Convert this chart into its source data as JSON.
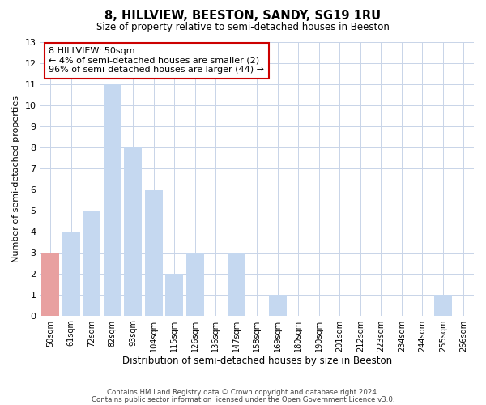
{
  "title": "8, HILLVIEW, BEESTON, SANDY, SG19 1RU",
  "subtitle": "Size of property relative to semi-detached houses in Beeston",
  "xlabel": "Distribution of semi-detached houses by size in Beeston",
  "ylabel": "Number of semi-detached properties",
  "categories": [
    "50sqm",
    "61sqm",
    "72sqm",
    "82sqm",
    "93sqm",
    "104sqm",
    "115sqm",
    "126sqm",
    "136sqm",
    "147sqm",
    "158sqm",
    "169sqm",
    "180sqm",
    "190sqm",
    "201sqm",
    "212sqm",
    "223sqm",
    "234sqm",
    "244sqm",
    "255sqm",
    "266sqm"
  ],
  "values": [
    3,
    4,
    5,
    11,
    8,
    6,
    2,
    3,
    0,
    3,
    0,
    1,
    0,
    0,
    0,
    0,
    0,
    0,
    0,
    1,
    0
  ],
  "highlight_index": 0,
  "bar_color": "#c5d8f0",
  "highlight_color": "#e8a0a0",
  "annotation_text": "8 HILLVIEW: 50sqm\n← 4% of semi-detached houses are smaller (2)\n96% of semi-detached houses are larger (44) →",
  "annotation_box_color": "#ffffff",
  "annotation_box_edge": "#cc0000",
  "ylim": [
    0,
    13
  ],
  "yticks": [
    0,
    1,
    2,
    3,
    4,
    5,
    6,
    7,
    8,
    9,
    10,
    11,
    12,
    13
  ],
  "footer1": "Contains HM Land Registry data © Crown copyright and database right 2024.",
  "footer2": "Contains public sector information licensed under the Open Government Licence v3.0.",
  "bg_color": "#ffffff",
  "grid_color": "#c8d4e8"
}
